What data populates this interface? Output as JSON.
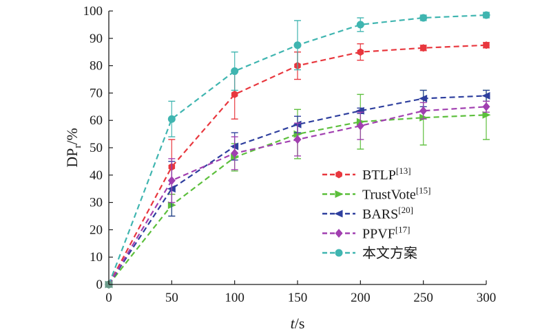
{
  "chart_data": {
    "type": "line",
    "xlabel": "t/s",
    "xlabel_italic": "t",
    "xlabel_unit": "/s",
    "ylabel": "DPr/%",
    "ylabel_main": "DP",
    "ylabel_sub": "r",
    "ylabel_unit": "/%",
    "xlim": [
      0,
      300
    ],
    "ylim": [
      0,
      100
    ],
    "xticks": [
      0,
      50,
      100,
      150,
      200,
      250,
      300
    ],
    "yticks": [
      0,
      10,
      20,
      30,
      40,
      50,
      60,
      70,
      80,
      90,
      100
    ],
    "grid": false,
    "legend_position": "lower-right",
    "series": [
      {
        "name": "BTLP[13]",
        "label": "BTLP",
        "ref": "[13]",
        "color": "#e8373e",
        "marker": "hexagon",
        "x": [
          0,
          50,
          100,
          150,
          200,
          250,
          300
        ],
        "y": [
          0,
          43,
          69.5,
          80,
          85,
          86.5,
          87.5
        ],
        "err": [
          0,
          10,
          9,
          5,
          3,
          1,
          1
        ]
      },
      {
        "name": "TrustVote[15]",
        "label": "TrustVote",
        "ref": "[15]",
        "color": "#5cbf3c",
        "marker": "triangle-right",
        "x": [
          0,
          50,
          100,
          150,
          200,
          250,
          300
        ],
        "y": [
          0,
          29,
          46.5,
          55,
          59.5,
          61,
          62
        ],
        "err": [
          0,
          4,
          5,
          9,
          10,
          10,
          9
        ]
      },
      {
        "name": "BARS[20]",
        "label": "BARS",
        "ref": "[20]",
        "color": "#2e3f9e",
        "marker": "triangle-left",
        "x": [
          0,
          50,
          100,
          150,
          200,
          250,
          300
        ],
        "y": [
          0,
          35,
          50.5,
          58.5,
          63.5,
          68,
          69
        ],
        "err": [
          0,
          10,
          5,
          3,
          1,
          3,
          2
        ]
      },
      {
        "name": "PPVF[17]",
        "label": "PPVF",
        "ref": "[17]",
        "color": "#a13fb0",
        "marker": "diamond",
        "x": [
          0,
          50,
          100,
          150,
          200,
          250,
          300
        ],
        "y": [
          0,
          38,
          48,
          53,
          58,
          63.5,
          65
        ],
        "err": [
          0,
          8,
          6,
          6,
          5,
          3,
          2
        ]
      },
      {
        "name": "本文方案",
        "label": "本文方案",
        "ref": "",
        "color": "#3fb5b0",
        "marker": "circle",
        "x": [
          0,
          50,
          100,
          150,
          200,
          250,
          300
        ],
        "y": [
          0,
          60.5,
          78,
          87.5,
          95,
          97.5,
          98.5
        ],
        "err": [
          0,
          6.5,
          7,
          9,
          2.5,
          1,
          1
        ]
      }
    ]
  }
}
